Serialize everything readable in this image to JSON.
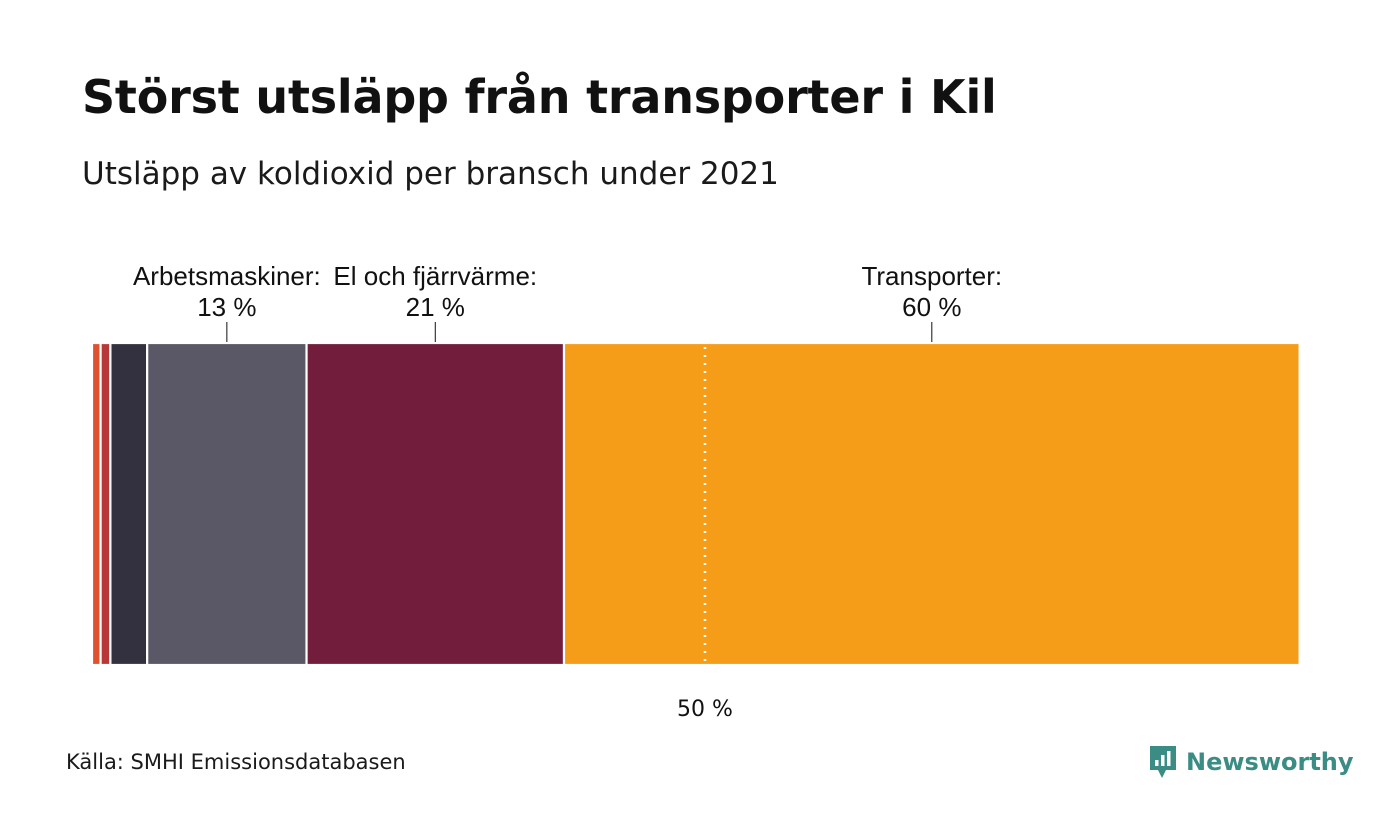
{
  "title": "Störst utsläpp från transporter i Kil",
  "subtitle": "Utsläpp av koldioxid per bransch under 2021",
  "source": "Källa: SMHI Emissionsdatabasen",
  "brand": {
    "name": "Newsworthy",
    "color": "#3a8c84",
    "icon": "newsworthy-logo-icon"
  },
  "chart_data": {
    "type": "bar",
    "orientation": "horizontal-stacked-100",
    "xlim": [
      0,
      100
    ],
    "reference_line": {
      "value": 50,
      "label": "50 %"
    },
    "series": [
      {
        "value": 0.7,
        "color": "#e0522f"
      },
      {
        "value": 0.8,
        "color": "#b8383a"
      },
      {
        "value": 3.0,
        "color": "#33313f"
      },
      {
        "name": "Arbetsmaskiner",
        "value": 13,
        "label": "Arbetsmaskiner:",
        "value_label": "13 %",
        "color": "#5a5866"
      },
      {
        "name": "El och fjärrvärme",
        "value": 21,
        "label": "El och fjärrvärme:",
        "value_label": "21 %",
        "color": "#731d3c"
      },
      {
        "name": "Transporter",
        "value": 60,
        "label": "Transporter:",
        "value_label": "60 %",
        "color": "#f59c18"
      }
    ]
  }
}
